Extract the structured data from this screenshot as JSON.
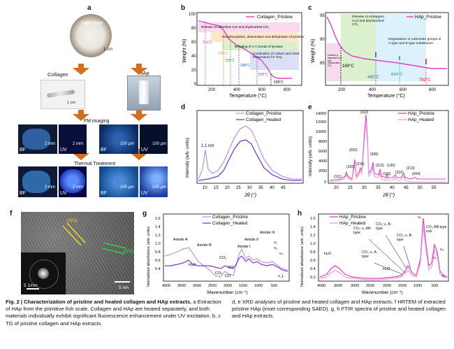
{
  "panel_labels": {
    "a": "a",
    "b": "b",
    "c": "c",
    "d": "d",
    "e": "e",
    "f": "f",
    "g": "g",
    "h": "h"
  },
  "panel_a": {
    "fish_scale": "Fish scale",
    "scale_1cm": "1 cm",
    "collagen": "Collagen",
    "hap": "HAp",
    "scale_collagen": "1 cm",
    "scale_hap": "1 cm",
    "fm_imaging": "FM imaging",
    "thermal_treatment": "Thermal Treatment",
    "bf": "BF",
    "uv": "UV",
    "s2mm": "2 mm",
    "s100um": "100 μm"
  },
  "panel_b": {
    "legend": "Collagen_Pristine",
    "ylabel": "Weight (%)",
    "xlabel": "Temperature (°C)",
    "note1": "Release of adsorbed H₂O and physisorbed CO₂",
    "note2": "Decarboxylation, deamination and dehydration of tyrosine",
    "note3": "Breaking of C-C bonds of tyrosine",
    "note4": "Combustion of carbon and onset temperature for HAp",
    "t1": "114°C",
    "t2": "278°C",
    "t3": "335°C",
    "t4": "398°C",
    "t5": "520°C",
    "t6": "638°C"
  },
  "panel_c": {
    "legend": "HAp_Pristine",
    "ylabel": "Weight (%)",
    "xlabel": "Temperature (°C)",
    "note1": "Release of entrapped H₂O and physisorbed CO₂",
    "note0": "Release of adsorbed H₂O and physisorbed CO₂",
    "note2": "Degradation of carbonate groups of A-type and B-type substitution",
    "t1": "169°C",
    "t2": "445°C",
    "t3": "644°C",
    "t4": "782°C"
  },
  "panel_d": {
    "legend1": "Collagen_Pristine",
    "legend2": "Collagen_Heated",
    "ylabel": "Intensity (arb. units)",
    "xlabel": "2θ (°)",
    "peak": "1.1 nm"
  },
  "panel_e": {
    "legend1": "HAp_Pristine",
    "legend2": "HAp_Heated",
    "ylabel": "Intensity (arb. units)",
    "xlabel": "2θ (°)",
    "peaks": [
      "(002)",
      "(210)",
      "(102)",
      "(112)",
      "(300)",
      "(212)",
      "(130)",
      "(113)",
      "(222)",
      "(213)",
      "(004)",
      "(111)"
    ]
  },
  "panel_f": {
    "plane1": "(201)",
    "plane2": "(002)",
    "scale_saed": "5 1/nm",
    "scale_img": "5 nm"
  },
  "panel_g": {
    "legend1": "Collagen_Pristine",
    "legend2": "Collagen_Heated",
    "ylabel": "Normalized absorbance (arb. units)",
    "xlabel": "Wavenumber (cm⁻¹)",
    "labels": [
      "Amide A",
      "Amide B",
      "H₂O",
      "CO₂",
      "CO",
      "Amide I",
      "Amide II",
      "Amide III",
      "ν₁",
      "ν₃",
      "ν₄",
      "ν_L"
    ]
  },
  "panel_h": {
    "legend1": "HAp_Pristine",
    "legend2": "HAp_Heated",
    "ylabel": "Normalized absorbance (arb. units)",
    "xlabel": "Wavenumber (cm⁻¹)",
    "labels": [
      "H₂O",
      "CO₃ ν₃ AB- type",
      "CO₃ ν₃ B-type",
      "CO₃ ν₂ A-type",
      "CO₃ ν₃ B-type",
      "ν₃",
      "CO₃ AB-type sub",
      "ν₁",
      "ν₄",
      "ν₂",
      "H₂O"
    ]
  },
  "caption": {
    "title": "Fig. 2 | Characterization of pristine and heated collagen and HAp extracts.",
    "left_body": "a Extraction of HAp from the primitive fish scale. Collagen and HAp are heated separately, and both materials individually exhibit significant fluorescence enhancement under UV excitation. b, c TG of pristine collagen and HAp extracts.",
    "right_body": "d, e XRD analyses of pristine and heated collagen and HAp extracts. f HRTEM of extracted pristine HAp (inset corresponding SAED). g, h FTIR spectra of pristine and heated collagen and HAp extracts."
  },
  "colors": {
    "pink": "#e040c8",
    "purple": "#7a3ad0",
    "lavender": "#b79be6",
    "blue": "#2a64b8",
    "green": "#2fae4a"
  }
}
